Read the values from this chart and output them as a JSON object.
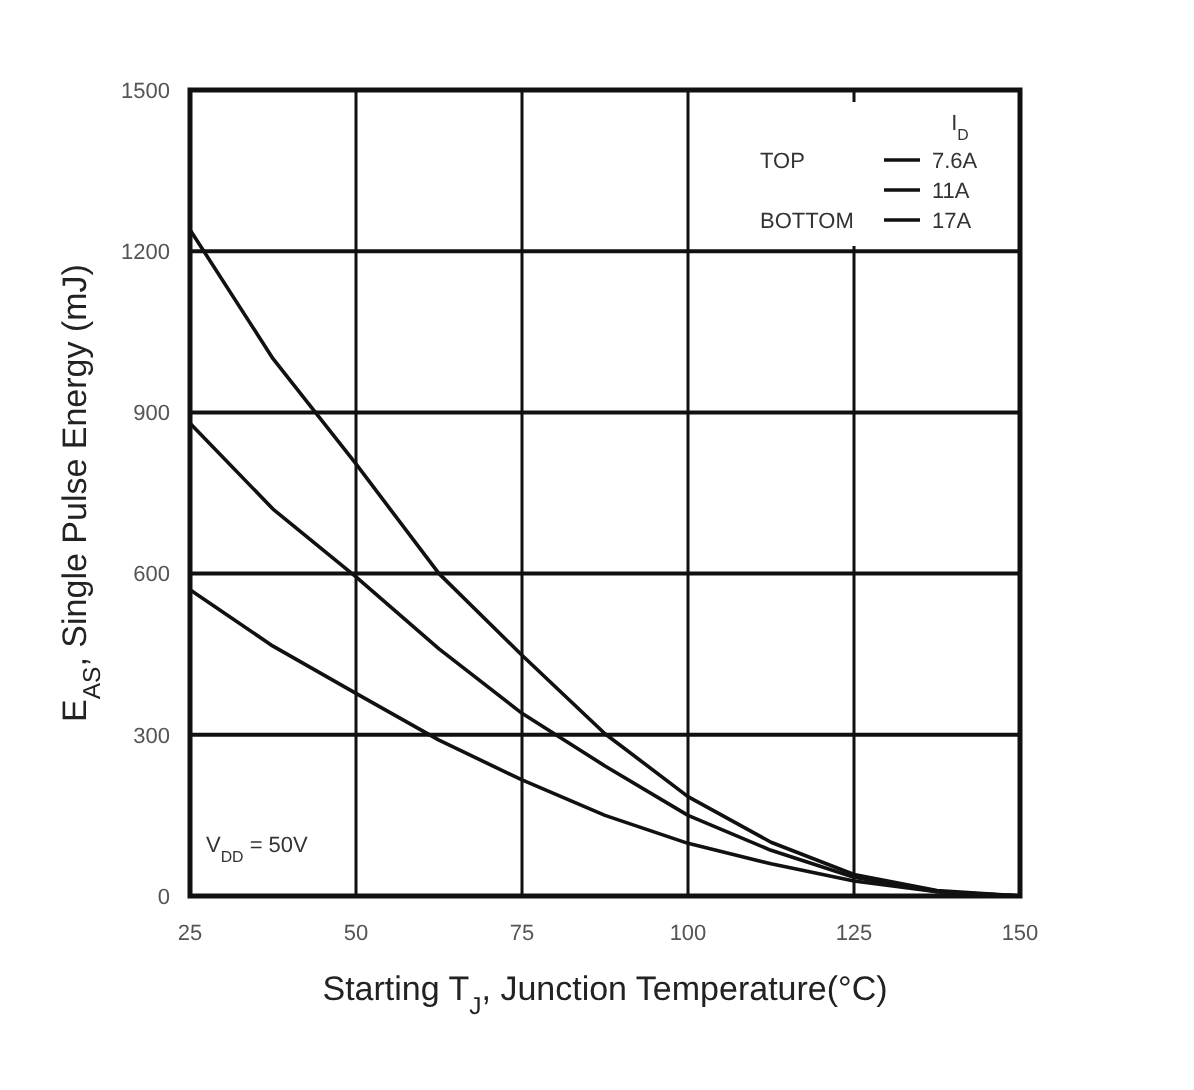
{
  "chart_data": {
    "type": "line",
    "xlabel": "Starting T$_{J}$, Junction Temperature(°C)",
    "ylabel": "E$_{AS}$, Single Pulse Energy (mJ)",
    "legend_title": "I$_{D}$",
    "x": [
      25,
      37.5,
      50,
      62.5,
      75,
      87.5,
      100,
      112.5,
      125,
      137.5,
      150
    ],
    "series": [
      {
        "name": "7.6A",
        "color": "#111111",
        "values": [
          1240,
          1000,
          804,
          600,
          448,
          302,
          185,
          100,
          40,
          10,
          0
        ]
      },
      {
        "name": "11A",
        "color": "#111111",
        "values": [
          880,
          720,
          594,
          460,
          340,
          242,
          150,
          85,
          35,
          8,
          0
        ]
      },
      {
        "name": "17A",
        "color": "#111111",
        "values": [
          570,
          465,
          377,
          290,
          216,
          150,
          98,
          60,
          28,
          8,
          0
        ]
      }
    ],
    "xlim": [
      25,
      150
    ],
    "xticks": [
      25,
      50,
      75,
      100,
      125,
      150
    ],
    "ylim": [
      0,
      1500
    ],
    "yticks": [
      0,
      300,
      600,
      900,
      1200,
      1500
    ],
    "grid": true,
    "legend": "top right",
    "marker": "none",
    "line_style": "solid",
    "annotations": [
      "TOP",
      "BOTTOM",
      "V$_{DD}$ = 50V"
    ]
  }
}
